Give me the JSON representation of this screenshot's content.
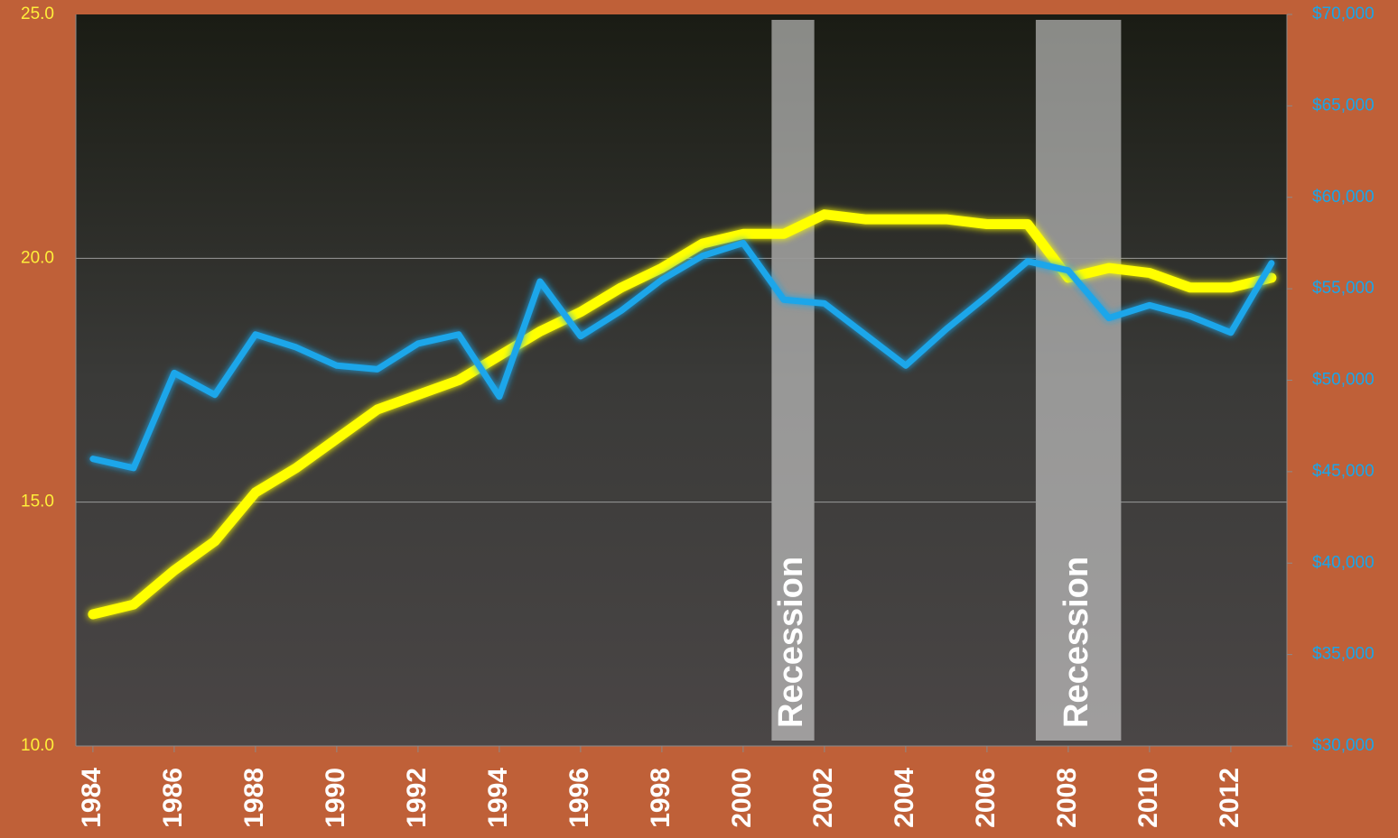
{
  "chart_data": {
    "type": "line",
    "x": [
      1984,
      1985,
      1986,
      1987,
      1988,
      1989,
      1990,
      1991,
      1992,
      1993,
      1994,
      1995,
      1996,
      1997,
      1998,
      1999,
      2000,
      2001,
      2002,
      2003,
      2004,
      2005,
      2006,
      2007,
      2008,
      2009,
      2010,
      2011,
      2012,
      2013
    ],
    "xlim": [
      1983.58,
      2013.38
    ],
    "xticks": [
      1984,
      1986,
      1988,
      1990,
      1992,
      1994,
      1996,
      1998,
      2000,
      2002,
      2004,
      2006,
      2008,
      2010,
      2012
    ],
    "ylim": [
      10,
      25
    ],
    "yticks": [
      {
        "value": 10,
        "label": "10.0"
      },
      {
        "value": 15,
        "label": "15.0"
      },
      {
        "value": 20,
        "label": "20.0"
      },
      {
        "value": 25,
        "label": "25.0"
      }
    ],
    "y2lim": [
      30000,
      70000
    ],
    "y2ticks": [
      {
        "value": 30000,
        "label": "$30,000"
      },
      {
        "value": 35000,
        "label": "$35,000"
      },
      {
        "value": 40000,
        "label": "$40,000"
      },
      {
        "value": 45000,
        "label": "$45,000"
      },
      {
        "value": 50000,
        "label": "$50,000"
      },
      {
        "value": 55000,
        "label": "$55,000"
      },
      {
        "value": 60000,
        "label": "$60,000"
      },
      {
        "value": 65000,
        "label": "$65,000"
      },
      {
        "value": 70000,
        "label": "$70,000"
      }
    ],
    "grid": true,
    "series": [
      {
        "color": "#ffff00",
        "values": [
          12.7,
          12.9,
          13.6,
          14.2,
          15.2,
          15.7,
          16.3,
          16.9,
          17.2,
          17.5,
          18.0,
          18.5,
          18.9,
          19.4,
          19.8,
          20.3,
          20.5,
          20.5,
          20.9,
          20.8,
          20.8,
          20.8,
          20.7,
          20.7,
          19.6,
          19.8,
          19.7,
          19.4,
          19.4,
          19.6
        ]
      },
      {
        "color": "#1aa6ea",
        "axis": "y2",
        "values": [
          45700,
          45200,
          50400,
          49200,
          52500,
          51800,
          50800,
          50600,
          52000,
          52500,
          49100,
          55400,
          52400,
          53800,
          55500,
          56800,
          57500,
          54400,
          54200,
          52500,
          50800,
          52800,
          54600,
          56500,
          56000,
          53400,
          54100,
          53500,
          52600,
          56400
        ]
      }
    ],
    "annotations": [
      {
        "text": "Recession",
        "from": 2000.7,
        "to": 2001.75
      },
      {
        "text": "Recession",
        "from": 2007.2,
        "to": 2009.3
      }
    ]
  }
}
